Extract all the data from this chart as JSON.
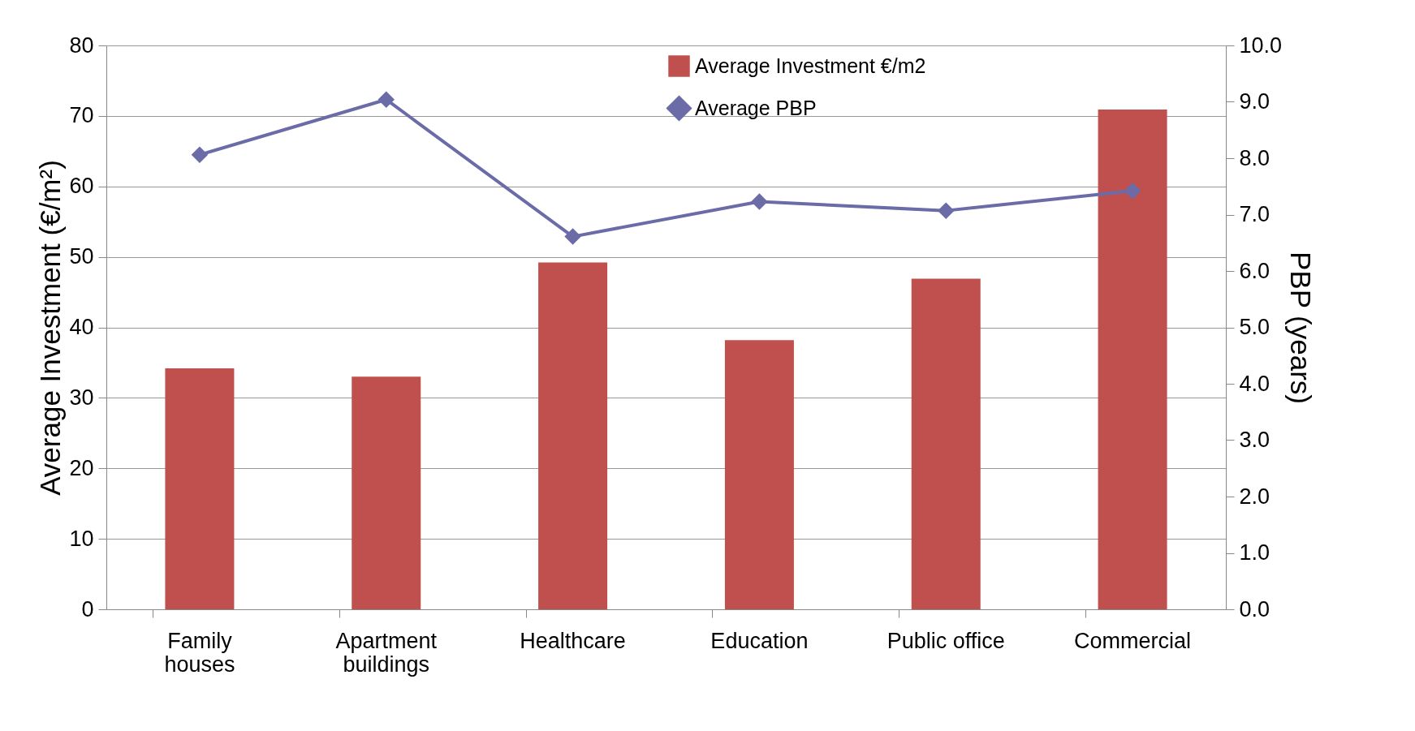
{
  "chart_data": {
    "type": "bar",
    "categories": [
      "Family\nhouses",
      "Apartment\nbuildings",
      "Healthcare",
      "Education",
      "Public office",
      "Commercial"
    ],
    "ylabel": "Average Investment (€/m²)",
    "y2label": "PBP (years)",
    "series": [
      {
        "name": "Average Investment €/m2",
        "color": "#c0504d",
        "values": [
          34.2,
          33.0,
          49.2,
          38.2,
          46.9,
          70.9
        ]
      },
      {
        "name": "Average PBP",
        "type": "line",
        "axis": "y2",
        "color": "#6b6ba8",
        "marker": "diamond",
        "values": [
          8.06,
          9.04,
          6.61,
          7.23,
          7.07,
          7.42
        ]
      }
    ],
    "ylim": [
      0,
      80
    ],
    "yticks": [
      0,
      10,
      20,
      30,
      40,
      50,
      60,
      70,
      80
    ],
    "y2lim": [
      0,
      10
    ],
    "y2ticks": [
      {
        "value": 0,
        "label": "0.0"
      },
      {
        "value": 1,
        "label": "1.0"
      },
      {
        "value": 2,
        "label": "2.0"
      },
      {
        "value": 3,
        "label": "3.0"
      },
      {
        "value": 4,
        "label": "4.0"
      },
      {
        "value": 5,
        "label": "5.0"
      },
      {
        "value": 6,
        "label": "6.0"
      },
      {
        "value": 7,
        "label": "7.0"
      },
      {
        "value": 8,
        "label": "8.0"
      },
      {
        "value": 9,
        "label": "9.0"
      },
      {
        "value": 10,
        "label": "10.0"
      }
    ],
    "grid": "y",
    "legend": "top right"
  }
}
